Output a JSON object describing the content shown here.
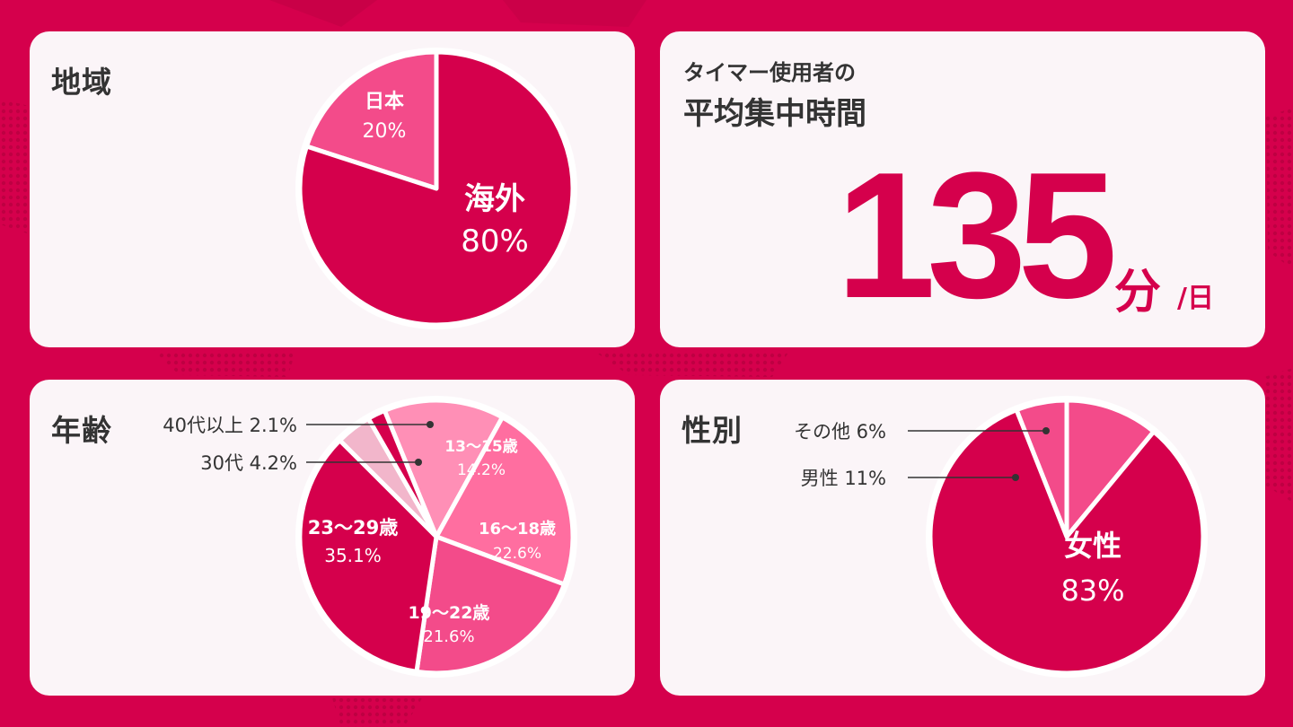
{
  "colors": {
    "background": "#d5004c",
    "card": "#fbf5f8",
    "accent": "#d5004c",
    "pink_mid": "#f34b8a",
    "pink_light": "#ff6ea0",
    "pink_pale": "#ff8fb6",
    "pink_faint": "#f2b6cb"
  },
  "avg_time": {
    "subtitle": "タイマー使用者の",
    "title": "平均集中時間",
    "value": "135",
    "unit": "分",
    "per": "/日"
  },
  "chart_data": [
    {
      "type": "pie",
      "title": "地域",
      "slices": [
        {
          "label": "日本",
          "value": 20,
          "pct_label": "20%",
          "color": "#f34b8a"
        },
        {
          "label": "海外",
          "value": 80,
          "pct_label": "80%",
          "color": "#d5004c"
        }
      ]
    },
    {
      "type": "pie",
      "title": "年齢",
      "slices": [
        {
          "label": "13〜15歳",
          "value": 14.2,
          "pct_label": "14.2%",
          "color": "#ff8fb6"
        },
        {
          "label": "16〜18歳",
          "value": 22.6,
          "pct_label": "22.6%",
          "color": "#ff6ea0"
        },
        {
          "label": "19〜22歳",
          "value": 21.6,
          "pct_label": "21.6%",
          "color": "#f34b8a"
        },
        {
          "label": "23〜29歳",
          "value": 35.1,
          "pct_label": "35.1%",
          "color": "#d5004c"
        },
        {
          "label": "30代",
          "value": 4.2,
          "pct_label": "4.2%",
          "color": "#f2b6cb",
          "callout": "30代 4.2%"
        },
        {
          "label": "40代以上",
          "value": 2.1,
          "pct_label": "2.1%",
          "color": "#d5004c",
          "callout": "40代以上 2.1%"
        }
      ]
    },
    {
      "type": "pie",
      "title": "性別",
      "slices": [
        {
          "label": "その他",
          "value": 6,
          "pct_label": "6%",
          "color": "#f34b8a",
          "callout": "その他 6%"
        },
        {
          "label": "男性",
          "value": 11,
          "pct_label": "11%",
          "color": "#f34b8a",
          "callout": "男性 11%"
        },
        {
          "label": "女性",
          "value": 83,
          "pct_label": "83%",
          "color": "#d5004c"
        }
      ]
    }
  ]
}
